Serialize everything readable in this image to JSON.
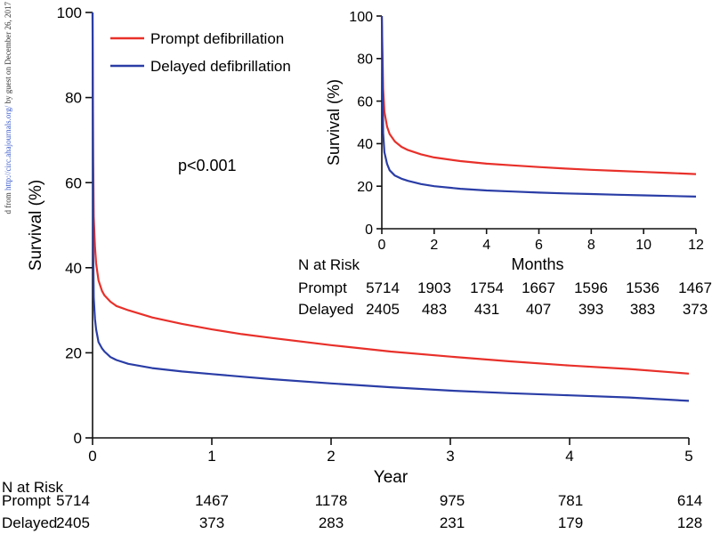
{
  "watermark": {
    "prefix": "d from",
    "link": "http://circ.ahajournals.org/",
    "suffix": "by guest on December 26, 2017"
  },
  "colors": {
    "prompt": "#e8302a",
    "delayed": "#2a3da6",
    "axis": "#111111"
  },
  "chart_data": [
    {
      "id": "main",
      "type": "line",
      "title": "",
      "xlabel": "Year",
      "ylabel": "Survival (%)",
      "xlim": [
        0,
        5
      ],
      "ylim": [
        0,
        100
      ],
      "xticks": [
        "0",
        "1",
        "2",
        "3",
        "4",
        "5"
      ],
      "yticks": [
        "0",
        "20",
        "40",
        "60",
        "80",
        "100"
      ],
      "grid": false,
      "annotation": "p<0.001",
      "legend": {
        "position": "top-left",
        "entries": [
          "Prompt defibrillation",
          "Delayed defibrillation"
        ]
      },
      "series": [
        {
          "name": "Prompt defibrillation",
          "x": [
            0,
            0.005,
            0.01,
            0.02,
            0.03,
            0.05,
            0.08,
            0.1,
            0.15,
            0.2,
            0.3,
            0.5,
            0.75,
            1.0,
            1.25,
            1.5,
            2.0,
            2.5,
            3.0,
            3.5,
            4.0,
            4.5,
            5.0
          ],
          "y": [
            100,
            66,
            52,
            45,
            41,
            37,
            34.5,
            33.5,
            32,
            31,
            30,
            28.3,
            26.8,
            25.5,
            24.4,
            23.5,
            21.8,
            20.3,
            19.1,
            18,
            17,
            16.2,
            15.1
          ]
        },
        {
          "name": "Delayed defibrillation",
          "x": [
            0,
            0.005,
            0.01,
            0.02,
            0.03,
            0.05,
            0.08,
            0.1,
            0.15,
            0.2,
            0.3,
            0.5,
            0.75,
            1.0,
            1.25,
            1.5,
            2.0,
            2.5,
            3.0,
            3.5,
            4.0,
            4.5,
            5.0
          ],
          "y": [
            100,
            45,
            33,
            28,
            25.5,
            22.5,
            21,
            20.3,
            19,
            18.3,
            17.4,
            16.4,
            15.6,
            15,
            14.4,
            13.8,
            12.8,
            11.9,
            11.1,
            10.5,
            10,
            9.5,
            8.7
          ]
        }
      ],
      "risk_table": {
        "header": "N at Risk",
        "rows": [
          {
            "label": "Prompt",
            "values": [
              "5714",
              "1467",
              "1178",
              "975",
              "781",
              "614"
            ]
          },
          {
            "label": "Delayed",
            "values": [
              "2405",
              "373",
              "283",
              "231",
              "179",
              "128"
            ]
          }
        ]
      }
    },
    {
      "id": "inset",
      "type": "line",
      "title": "",
      "xlabel": "Months",
      "ylabel": "Survival (%)",
      "xlim": [
        0,
        12
      ],
      "ylim": [
        0,
        100
      ],
      "xticks": [
        "0",
        "2",
        "4",
        "6",
        "8",
        "10",
        "12"
      ],
      "yticks": [
        "0",
        "20",
        "40",
        "60",
        "80",
        "100"
      ],
      "grid": false,
      "series": [
        {
          "name": "Prompt defibrillation",
          "x": [
            0,
            0.05,
            0.1,
            0.2,
            0.3,
            0.5,
            0.75,
            1,
            1.5,
            2,
            3,
            4,
            5,
            6,
            7,
            8,
            9,
            10,
            11,
            12
          ],
          "y": [
            100,
            66,
            55,
            48,
            44.5,
            41,
            38.5,
            37,
            35,
            33.5,
            31.8,
            30.6,
            29.8,
            29,
            28.3,
            27.7,
            27.2,
            26.7,
            26.2,
            25.7
          ]
        },
        {
          "name": "Delayed defibrillation",
          "x": [
            0,
            0.05,
            0.1,
            0.2,
            0.3,
            0.5,
            0.75,
            1,
            1.5,
            2,
            3,
            4,
            5,
            6,
            7,
            8,
            9,
            10,
            11,
            12
          ],
          "y": [
            100,
            45,
            36,
            30.5,
            27.5,
            25,
            23.5,
            22.5,
            21,
            20,
            18.8,
            18,
            17.5,
            17,
            16.6,
            16.3,
            16,
            15.7,
            15.4,
            15.1
          ]
        }
      ],
      "risk_table": {
        "header": "N at Risk",
        "rows": [
          {
            "label": "Prompt",
            "values": [
              "5714",
              "1903",
              "1754",
              "1667",
              "1596",
              "1536",
              "1467"
            ]
          },
          {
            "label": "Delayed",
            "values": [
              "2405",
              "483",
              "431",
              "407",
              "393",
              "383",
              "373"
            ]
          }
        ]
      }
    }
  ]
}
